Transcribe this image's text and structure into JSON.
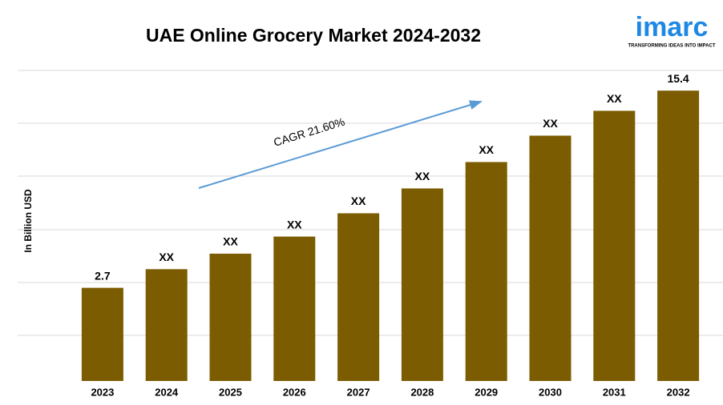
{
  "chart_data": {
    "type": "bar",
    "title": "UAE Online Grocery Market 2024-2032",
    "ylabel": "In Billion USD",
    "categories": [
      "2023",
      "2024",
      "2025",
      "2026",
      "2027",
      "2028",
      "2029",
      "2030",
      "2031",
      "2032"
    ],
    "values": [
      2.7,
      3.9,
      4.9,
      6.0,
      7.5,
      9.1,
      10.8,
      12.5,
      14.1,
      15.4
    ],
    "value_labels": [
      "2.7",
      "XX",
      "XX",
      "XX",
      "XX",
      "XX",
      "XX",
      "XX",
      "XX",
      "15.4"
    ],
    "color": "#7b5c00",
    "ylim": [
      -3.3,
      16.7
    ],
    "grid": true,
    "annotation": "CAGR 21.60%"
  },
  "logo": {
    "name": "imarc",
    "tagline": "TRANSFORMING IDEAS INTO IMPACT"
  }
}
